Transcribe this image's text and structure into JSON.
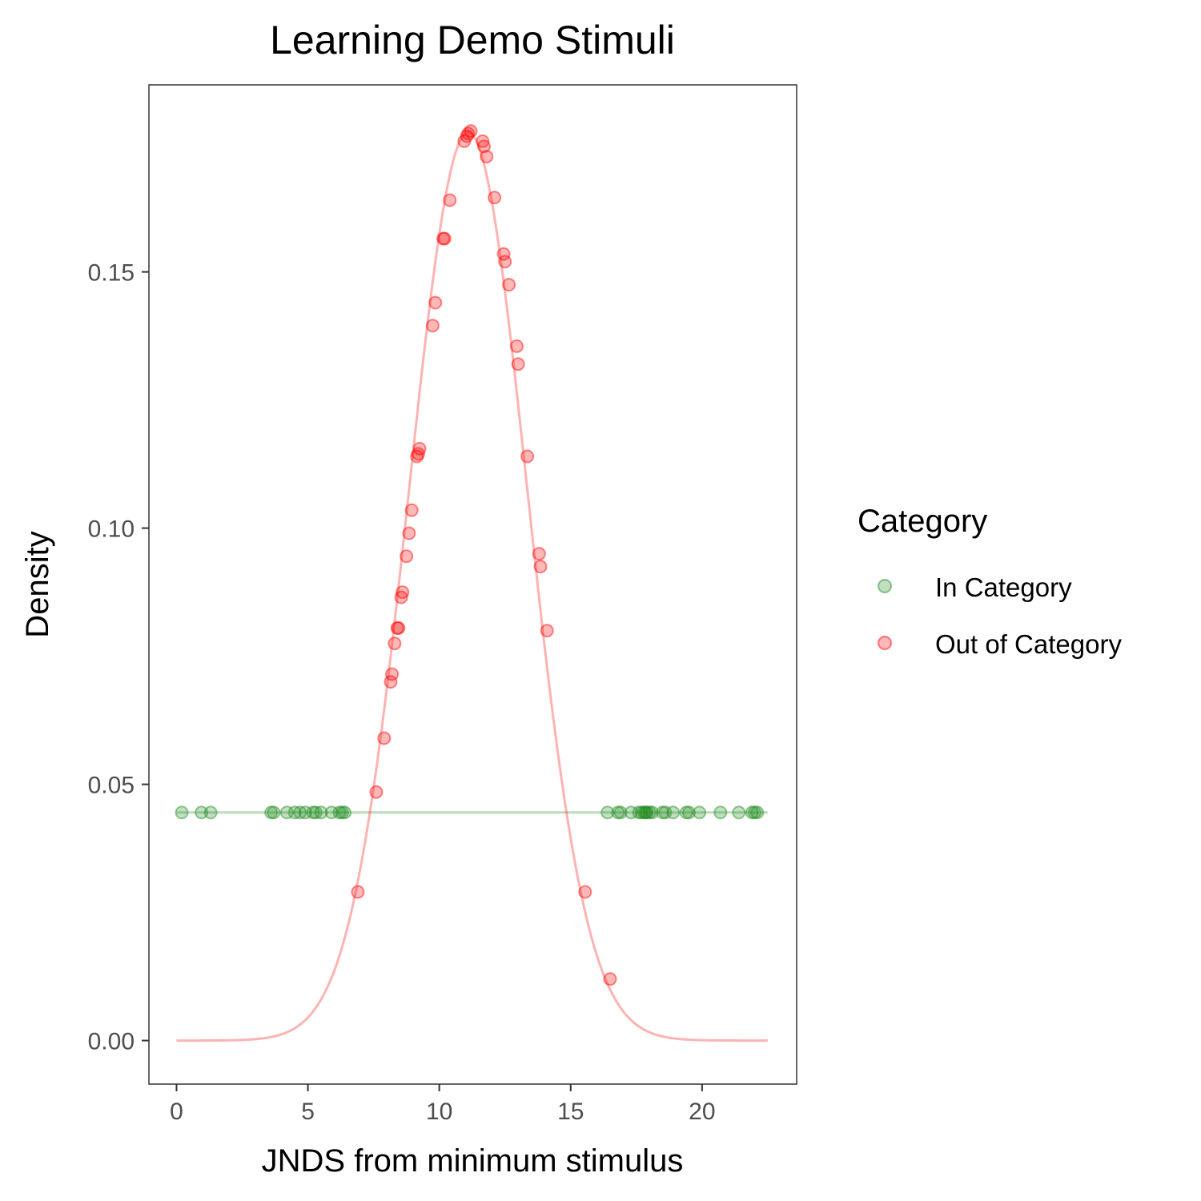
{
  "chart_data": {
    "type": "scatter",
    "title": "Learning Demo Stimuli",
    "xlabel": "JNDS from minimum stimulus",
    "ylabel": "Density",
    "xlim": [
      -1.05,
      23.6
    ],
    "ylim": [
      -0.0085,
      0.1865
    ],
    "x_ticks": [
      0,
      5,
      10,
      15,
      20
    ],
    "y_ticks": [
      0.0,
      0.05,
      0.1,
      0.15
    ],
    "x_tick_labels": [
      "0",
      "5",
      "10",
      "15",
      "20"
    ],
    "y_tick_labels": [
      "0.00",
      "0.05",
      "0.10",
      "0.15"
    ],
    "grid": false,
    "legend": {
      "title": "Category",
      "position": "right",
      "entries": [
        {
          "label": "In Category",
          "color": "#228b22"
        },
        {
          "label": "Out of Category",
          "color": "#ff0000"
        }
      ]
    },
    "series": [
      {
        "name": "In Category",
        "color": "#228b22",
        "line": {
          "type": "constant",
          "y": 0.0445,
          "x_range": [
            0,
            22.5
          ]
        },
        "points": [
          {
            "x": 0.2,
            "y": 0.0445
          },
          {
            "x": 0.95,
            "y": 0.0445
          },
          {
            "x": 1.3,
            "y": 0.0445
          },
          {
            "x": 3.6,
            "y": 0.0445
          },
          {
            "x": 3.7,
            "y": 0.0445
          },
          {
            "x": 4.2,
            "y": 0.0445
          },
          {
            "x": 4.5,
            "y": 0.0445
          },
          {
            "x": 4.7,
            "y": 0.0445
          },
          {
            "x": 4.9,
            "y": 0.0445
          },
          {
            "x": 5.2,
            "y": 0.0445
          },
          {
            "x": 5.3,
            "y": 0.0445
          },
          {
            "x": 5.5,
            "y": 0.0445
          },
          {
            "x": 5.9,
            "y": 0.0445
          },
          {
            "x": 6.2,
            "y": 0.0445
          },
          {
            "x": 6.3,
            "y": 0.0445
          },
          {
            "x": 6.4,
            "y": 0.0445
          },
          {
            "x": 16.4,
            "y": 0.0445
          },
          {
            "x": 16.8,
            "y": 0.0445
          },
          {
            "x": 16.9,
            "y": 0.0445
          },
          {
            "x": 17.3,
            "y": 0.0445
          },
          {
            "x": 17.6,
            "y": 0.0445
          },
          {
            "x": 17.7,
            "y": 0.0445
          },
          {
            "x": 17.8,
            "y": 0.0445
          },
          {
            "x": 17.85,
            "y": 0.0445
          },
          {
            "x": 17.9,
            "y": 0.0445
          },
          {
            "x": 18.0,
            "y": 0.0445
          },
          {
            "x": 18.1,
            "y": 0.0445
          },
          {
            "x": 18.5,
            "y": 0.0445
          },
          {
            "x": 18.6,
            "y": 0.0445
          },
          {
            "x": 18.9,
            "y": 0.0445
          },
          {
            "x": 19.4,
            "y": 0.0445
          },
          {
            "x": 19.5,
            "y": 0.0445
          },
          {
            "x": 19.9,
            "y": 0.0445
          },
          {
            "x": 20.7,
            "y": 0.0445
          },
          {
            "x": 21.4,
            "y": 0.0445
          },
          {
            "x": 21.9,
            "y": 0.0445
          },
          {
            "x": 22.0,
            "y": 0.0445
          },
          {
            "x": 22.1,
            "y": 0.0445
          }
        ]
      },
      {
        "name": "Out of Category",
        "color": "#ff0000",
        "line": {
          "type": "normal_density",
          "mean": 11.1,
          "sd": 2.25,
          "x_range": [
            0,
            22.5
          ]
        },
        "points": [
          {
            "x": 6.9,
            "y": 0.029
          },
          {
            "x": 7.6,
            "y": 0.0485
          },
          {
            "x": 7.9,
            "y": 0.059
          },
          {
            "x": 8.15,
            "y": 0.07
          },
          {
            "x": 8.2,
            "y": 0.0715
          },
          {
            "x": 8.3,
            "y": 0.0775
          },
          {
            "x": 8.4,
            "y": 0.0805
          },
          {
            "x": 8.45,
            "y": 0.0805
          },
          {
            "x": 8.55,
            "y": 0.0865
          },
          {
            "x": 8.6,
            "y": 0.0875
          },
          {
            "x": 8.75,
            "y": 0.0945
          },
          {
            "x": 8.85,
            "y": 0.099
          },
          {
            "x": 8.95,
            "y": 0.1035
          },
          {
            "x": 9.15,
            "y": 0.114
          },
          {
            "x": 9.2,
            "y": 0.1145
          },
          {
            "x": 9.25,
            "y": 0.1155
          },
          {
            "x": 9.75,
            "y": 0.1395
          },
          {
            "x": 9.85,
            "y": 0.144
          },
          {
            "x": 10.15,
            "y": 0.1565
          },
          {
            "x": 10.2,
            "y": 0.1565
          },
          {
            "x": 10.4,
            "y": 0.164
          },
          {
            "x": 10.95,
            "y": 0.1755
          },
          {
            "x": 11.05,
            "y": 0.1765
          },
          {
            "x": 11.1,
            "y": 0.177
          },
          {
            "x": 11.2,
            "y": 0.1775
          },
          {
            "x": 11.65,
            "y": 0.1755
          },
          {
            "x": 11.7,
            "y": 0.1745
          },
          {
            "x": 11.8,
            "y": 0.1725
          },
          {
            "x": 12.1,
            "y": 0.1645
          },
          {
            "x": 12.45,
            "y": 0.1535
          },
          {
            "x": 12.5,
            "y": 0.152
          },
          {
            "x": 12.65,
            "y": 0.1475
          },
          {
            "x": 12.95,
            "y": 0.1355
          },
          {
            "x": 13.0,
            "y": 0.132
          },
          {
            "x": 13.35,
            "y": 0.114
          },
          {
            "x": 13.8,
            "y": 0.095
          },
          {
            "x": 13.85,
            "y": 0.0925
          },
          {
            "x": 14.1,
            "y": 0.08
          },
          {
            "x": 15.55,
            "y": 0.029
          },
          {
            "x": 16.5,
            "y": 0.012
          }
        ]
      }
    ]
  }
}
